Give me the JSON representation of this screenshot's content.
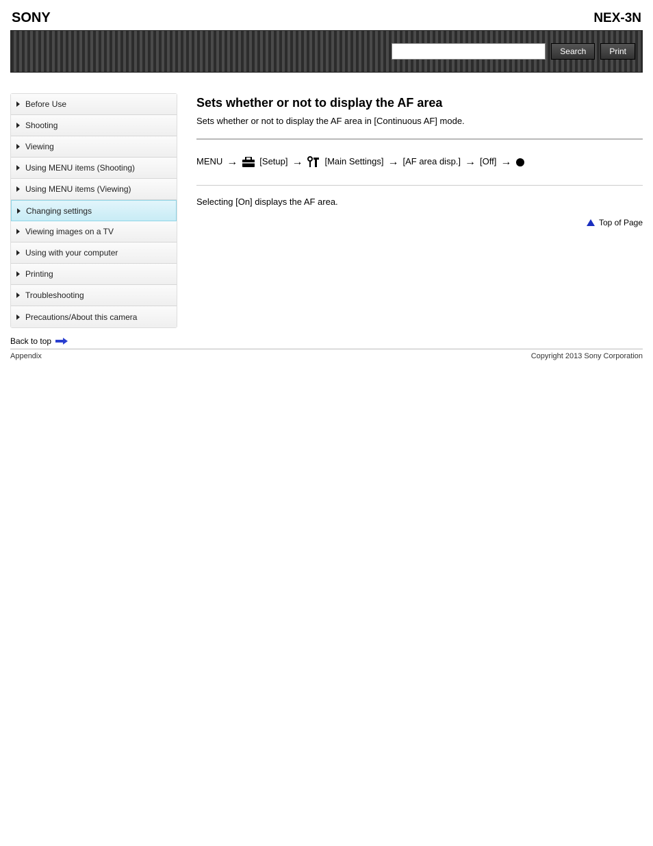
{
  "header": {
    "brand": "SONY",
    "model": "NEX-3N"
  },
  "topbar": {
    "search_label": "Search",
    "print_label": "Print",
    "search_placeholder": ""
  },
  "sidebar": {
    "items": [
      {
        "label": "Before Use"
      },
      {
        "label": "Shooting"
      },
      {
        "label": "Viewing"
      },
      {
        "label": "Using MENU items (Shooting)"
      },
      {
        "label": "Using MENU items (Viewing)"
      },
      {
        "label": "Changing settings"
      },
      {
        "label": "Viewing images on a TV"
      },
      {
        "label": "Using with your computer"
      },
      {
        "label": "Printing"
      },
      {
        "label": "Troubleshooting"
      },
      {
        "label": "Precautions/About this camera"
      }
    ],
    "active_index": 5
  },
  "content": {
    "page_title": "Sets whether or not to display the AF area",
    "page_subtitle": "Sets whether or not to display the AF area in [Continuous AF] mode.",
    "trail_steps": [
      {
        "type": "text",
        "text": "MENU"
      },
      {
        "type": "arrow"
      },
      {
        "type": "icon",
        "icon": "briefcase",
        "text": "[Setup]"
      },
      {
        "type": "arrow"
      },
      {
        "type": "icon",
        "icon": "tools",
        "text": "[Main Settings]"
      },
      {
        "type": "arrow"
      },
      {
        "type": "text",
        "text": "[AF area disp.]"
      },
      {
        "type": "arrow"
      },
      {
        "type": "text",
        "text": "[Off]"
      },
      {
        "type": "arrow"
      },
      {
        "type": "icon",
        "icon": "dot"
      }
    ],
    "description": "Selecting [On] displays the AF area.",
    "top_of_page": "Top of Page"
  },
  "back_link": "Back to top",
  "footer": {
    "left": "Copyright 2013 Sony Corporation",
    "right": "Appendix"
  },
  "colors": {
    "accent": "#1a2fbf",
    "sidebar_active_bg_top": "#e2f5fb",
    "sidebar_active_bg_bottom": "#c8ecf5",
    "sidebar_active_border": "#8fd6e8"
  }
}
